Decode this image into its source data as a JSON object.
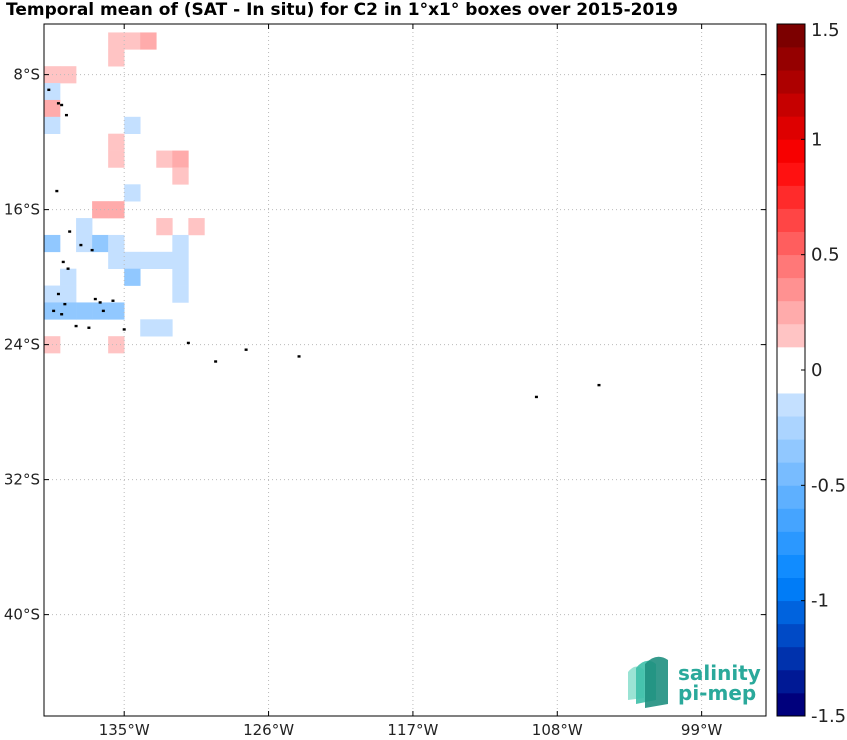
{
  "title": "Temporal mean of (SAT - In situ) for C2 in 1°x1° boxes over 2015-2019",
  "logo": {
    "line1": "salinity",
    "line2": "pi-mep",
    "color": "#2aa99b"
  },
  "map": {
    "lon_range": [
      -140,
      -95
    ],
    "lat_range": [
      -46,
      -5
    ],
    "lon_ticks": [
      {
        "value": -135,
        "label": "135°W"
      },
      {
        "value": -126,
        "label": "126°W"
      },
      {
        "value": -117,
        "label": "117°W"
      },
      {
        "value": -108,
        "label": "108°W"
      },
      {
        "value": -99,
        "label": "99°W"
      }
    ],
    "lat_ticks": [
      {
        "value": -8,
        "label": "8°S"
      },
      {
        "value": -16,
        "label": "16°S"
      },
      {
        "value": -24,
        "label": "24°S"
      },
      {
        "value": -32,
        "label": "32°S"
      },
      {
        "value": -40,
        "label": "40°S"
      }
    ],
    "grid": true,
    "cells": [
      {
        "lon": -136,
        "lat": -6,
        "value": 0.1
      },
      {
        "lon": -135,
        "lat": -6,
        "value": 0.1
      },
      {
        "lon": -134,
        "lat": -6,
        "value": 0.2
      },
      {
        "lon": -136,
        "lat": -7,
        "value": 0.1
      },
      {
        "lon": -140,
        "lat": -8,
        "value": 0.1
      },
      {
        "lon": -139,
        "lat": -8,
        "value": 0.1
      },
      {
        "lon": -140,
        "lat": -9,
        "value": -0.1
      },
      {
        "lon": -140,
        "lat": -10,
        "value": 0.2
      },
      {
        "lon": -140,
        "lat": -11,
        "value": -0.2
      },
      {
        "lon": -135,
        "lat": -11,
        "value": -0.2
      },
      {
        "lon": -136,
        "lat": -12,
        "value": 0.1
      },
      {
        "lon": -136,
        "lat": -13,
        "value": 0.1
      },
      {
        "lon": -133,
        "lat": -13,
        "value": 0.1
      },
      {
        "lon": -132,
        "lat": -13,
        "value": 0.2
      },
      {
        "lon": -132,
        "lat": -14,
        "value": 0.1
      },
      {
        "lon": -135,
        "lat": -15,
        "value": -0.1
      },
      {
        "lon": -137,
        "lat": -16,
        "value": 0.2
      },
      {
        "lon": -136,
        "lat": -16,
        "value": 0.2
      },
      {
        "lon": -138,
        "lat": -17,
        "value": -0.2
      },
      {
        "lon": -133,
        "lat": -17,
        "value": 0.1
      },
      {
        "lon": -131,
        "lat": -17,
        "value": 0.1
      },
      {
        "lon": -140,
        "lat": -18,
        "value": -0.3
      },
      {
        "lon": -138,
        "lat": -18,
        "value": -0.1
      },
      {
        "lon": -137,
        "lat": -18,
        "value": -0.3
      },
      {
        "lon": -136,
        "lat": -18,
        "value": -0.2
      },
      {
        "lon": -132,
        "lat": -18,
        "value": -0.1
      },
      {
        "lon": -136,
        "lat": -19,
        "value": -0.1
      },
      {
        "lon": -135,
        "lat": -19,
        "value": -0.2
      },
      {
        "lon": -134,
        "lat": -19,
        "value": -0.1
      },
      {
        "lon": -133,
        "lat": -19,
        "value": -0.1
      },
      {
        "lon": -132,
        "lat": -19,
        "value": -0.1
      },
      {
        "lon": -139,
        "lat": -20,
        "value": -0.1
      },
      {
        "lon": -135,
        "lat": -20,
        "value": -0.3
      },
      {
        "lon": -132,
        "lat": -20,
        "value": -0.1
      },
      {
        "lon": -140,
        "lat": -21,
        "value": -0.2
      },
      {
        "lon": -139,
        "lat": -21,
        "value": -0.2
      },
      {
        "lon": -132,
        "lat": -21,
        "value": -0.1
      },
      {
        "lon": -140,
        "lat": -22,
        "value": -0.3
      },
      {
        "lon": -139,
        "lat": -22,
        "value": -0.3
      },
      {
        "lon": -138,
        "lat": -22,
        "value": -0.4
      },
      {
        "lon": -137,
        "lat": -22,
        "value": -0.3
      },
      {
        "lon": -136,
        "lat": -22,
        "value": -0.3
      },
      {
        "lon": -134,
        "lat": -23,
        "value": -0.1
      },
      {
        "lon": -133,
        "lat": -23,
        "value": -0.1
      },
      {
        "lon": -140,
        "lat": -24,
        "value": 0.1
      },
      {
        "lon": -136,
        "lat": -24,
        "value": 0.1
      }
    ],
    "islands": [
      {
        "lon": -139.7,
        "lat": -8.9
      },
      {
        "lon": -139.1,
        "lat": -9.7
      },
      {
        "lon": -138.9,
        "lat": -9.8
      },
      {
        "lon": -138.6,
        "lat": -10.4
      },
      {
        "lon": -139.2,
        "lat": -14.9
      },
      {
        "lon": -138.4,
        "lat": -17.3
      },
      {
        "lon": -137.7,
        "lat": -18.1
      },
      {
        "lon": -137.0,
        "lat": -18.4
      },
      {
        "lon": -138.8,
        "lat": -19.1
      },
      {
        "lon": -138.5,
        "lat": -19.5
      },
      {
        "lon": -139.1,
        "lat": -21.0
      },
      {
        "lon": -138.7,
        "lat": -21.6
      },
      {
        "lon": -136.8,
        "lat": -21.3
      },
      {
        "lon": -136.5,
        "lat": -21.5
      },
      {
        "lon": -135.7,
        "lat": -21.4
      },
      {
        "lon": -136.3,
        "lat": -22.0
      },
      {
        "lon": -138.9,
        "lat": -22.2
      },
      {
        "lon": -139.4,
        "lat": -22.0
      },
      {
        "lon": -138.0,
        "lat": -22.9
      },
      {
        "lon": -137.2,
        "lat": -23.0
      },
      {
        "lon": -135.0,
        "lat": -23.1
      },
      {
        "lon": -131.0,
        "lat": -23.9
      },
      {
        "lon": -129.3,
        "lat": -25.0
      },
      {
        "lon": -127.4,
        "lat": -24.3
      },
      {
        "lon": -124.1,
        "lat": -24.7
      },
      {
        "lon": -109.3,
        "lat": -27.1
      },
      {
        "lon": -105.4,
        "lat": -26.4
      }
    ]
  },
  "colorbar": {
    "range": [
      -1.5,
      1.5
    ],
    "n_steps": 30,
    "ticks": [
      {
        "value": 1.5,
        "label": "1.5"
      },
      {
        "value": 1,
        "label": "1"
      },
      {
        "value": 0.5,
        "label": "0.5"
      },
      {
        "value": 0,
        "label": "0"
      },
      {
        "value": -0.5,
        "label": "-0.5"
      },
      {
        "value": -1,
        "label": "-1"
      },
      {
        "value": -1.5,
        "label": "-1.5"
      }
    ]
  }
}
